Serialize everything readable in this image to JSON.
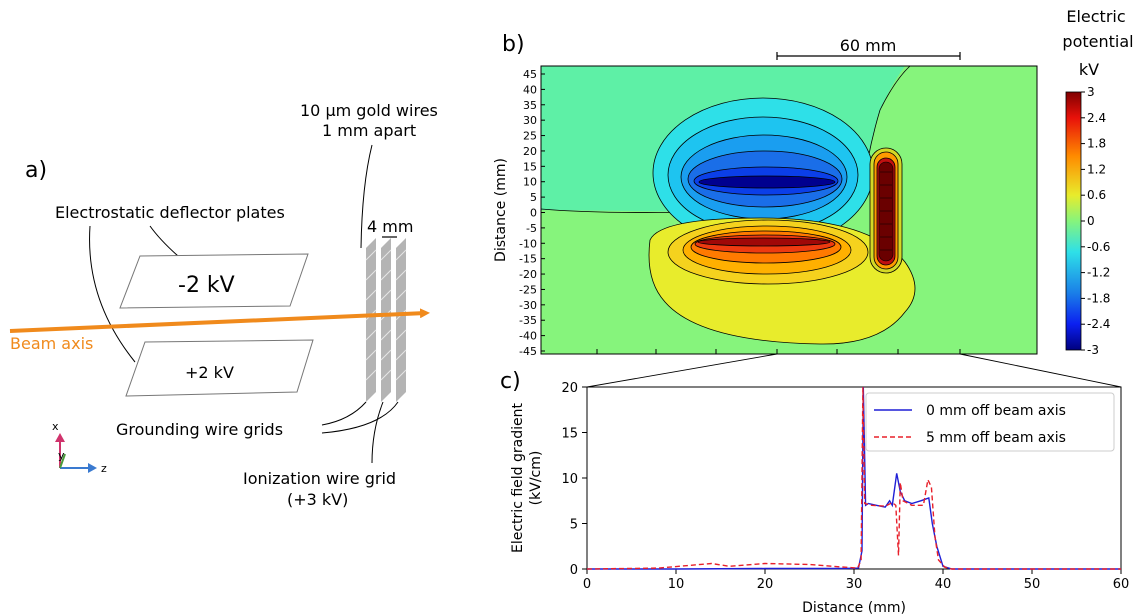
{
  "panel_a": {
    "letter": "a)",
    "gold_wires_line1": "10 µm gold wires",
    "gold_wires_line2": "1 mm apart",
    "spacing": "4 mm",
    "deflector_plates": "Electrostatic deflector plates",
    "top_plate": "-2 kV",
    "bottom_plate": "+2 kV",
    "beam_axis": "Beam axis",
    "grounding_grids": "Grounding wire grids",
    "ionization_line1": "Ionization wire grid",
    "ionization_line2": "(+3 kV)",
    "axis_x": "x",
    "axis_y": "y",
    "axis_z": "z",
    "colors": {
      "beam": "#f08a1c",
      "axis_x": "#d0336c",
      "axis_y": "#4a9a3a",
      "axis_z": "#3a7ad0",
      "grid": "#b4b4b4"
    }
  },
  "panel_b": {
    "letter": "b)",
    "scale_bar": "60 mm",
    "ylabel": "Distance (mm)",
    "yticks": [
      "45",
      "40",
      "35",
      "30",
      "25",
      "20",
      "15",
      "10",
      "5",
      "0",
      "-5",
      "-10",
      "-15",
      "-20",
      "-25",
      "-30",
      "-35",
      "-40",
      "-45"
    ],
    "colorbar_title_line1": "Electric",
    "colorbar_title_line2": "potential",
    "colorbar_unit": "kV",
    "colorbar_ticks": [
      "3",
      "2.4",
      "1.8",
      "1.2",
      "0.6",
      "0",
      "-0.6",
      "-1.2",
      "-1.8",
      "-2.4",
      "-3"
    ],
    "colorbar_range": [
      -3,
      3
    ]
  },
  "chart_data": {
    "type": "line",
    "panel_letter": "c)",
    "xlabel": "Distance (mm)",
    "ylabel_line1": "Electric field gradient",
    "ylabel_line2": "(kV/cm)",
    "xlim": [
      0,
      60
    ],
    "ylim": [
      0,
      20
    ],
    "xticks": [
      0,
      10,
      20,
      30,
      40,
      50,
      60
    ],
    "yticks": [
      0,
      5,
      10,
      15,
      20
    ],
    "legend_position": "top-right",
    "series": [
      {
        "name": "0 mm off beam axis",
        "color": "#1f1fd6",
        "dash": "solid",
        "x": [
          0,
          10,
          20,
          29,
          30.5,
          30.9,
          31.05,
          31.3,
          31.6,
          32.5,
          33.5,
          34.0,
          34.3,
          34.8,
          35.2,
          35.7,
          36.5,
          37.5,
          38.4,
          38.8,
          39.3,
          40.0,
          41,
          50,
          60
        ],
        "y": [
          0,
          0,
          0.05,
          0.05,
          0.1,
          2,
          20,
          7,
          7.2,
          7.0,
          6.8,
          7.5,
          7.0,
          10.5,
          8.5,
          7.5,
          7.2,
          7.5,
          7.8,
          5,
          2.5,
          0.3,
          0,
          0,
          0
        ]
      },
      {
        "name": "5 mm off beam axis",
        "color": "#e8202a",
        "dash": "dashed",
        "x": [
          0,
          8,
          14,
          16,
          20,
          25,
          29,
          30.4,
          30.8,
          31.0,
          31.2,
          32.0,
          33.5,
          34.3,
          34.7,
          35.0,
          35.2,
          35.5,
          36.5,
          37.8,
          38.3,
          38.7,
          39.1,
          39.5,
          40.2,
          41,
          50,
          60
        ],
        "y": [
          0,
          0.1,
          0.6,
          0.3,
          0.6,
          0.5,
          0.2,
          0.1,
          1,
          20,
          7.2,
          7.0,
          6.9,
          7.3,
          7.0,
          1.5,
          9.5,
          7.5,
          7.0,
          7.0,
          9.8,
          9.0,
          3.5,
          1.0,
          0.2,
          0,
          0,
          0
        ]
      }
    ]
  }
}
